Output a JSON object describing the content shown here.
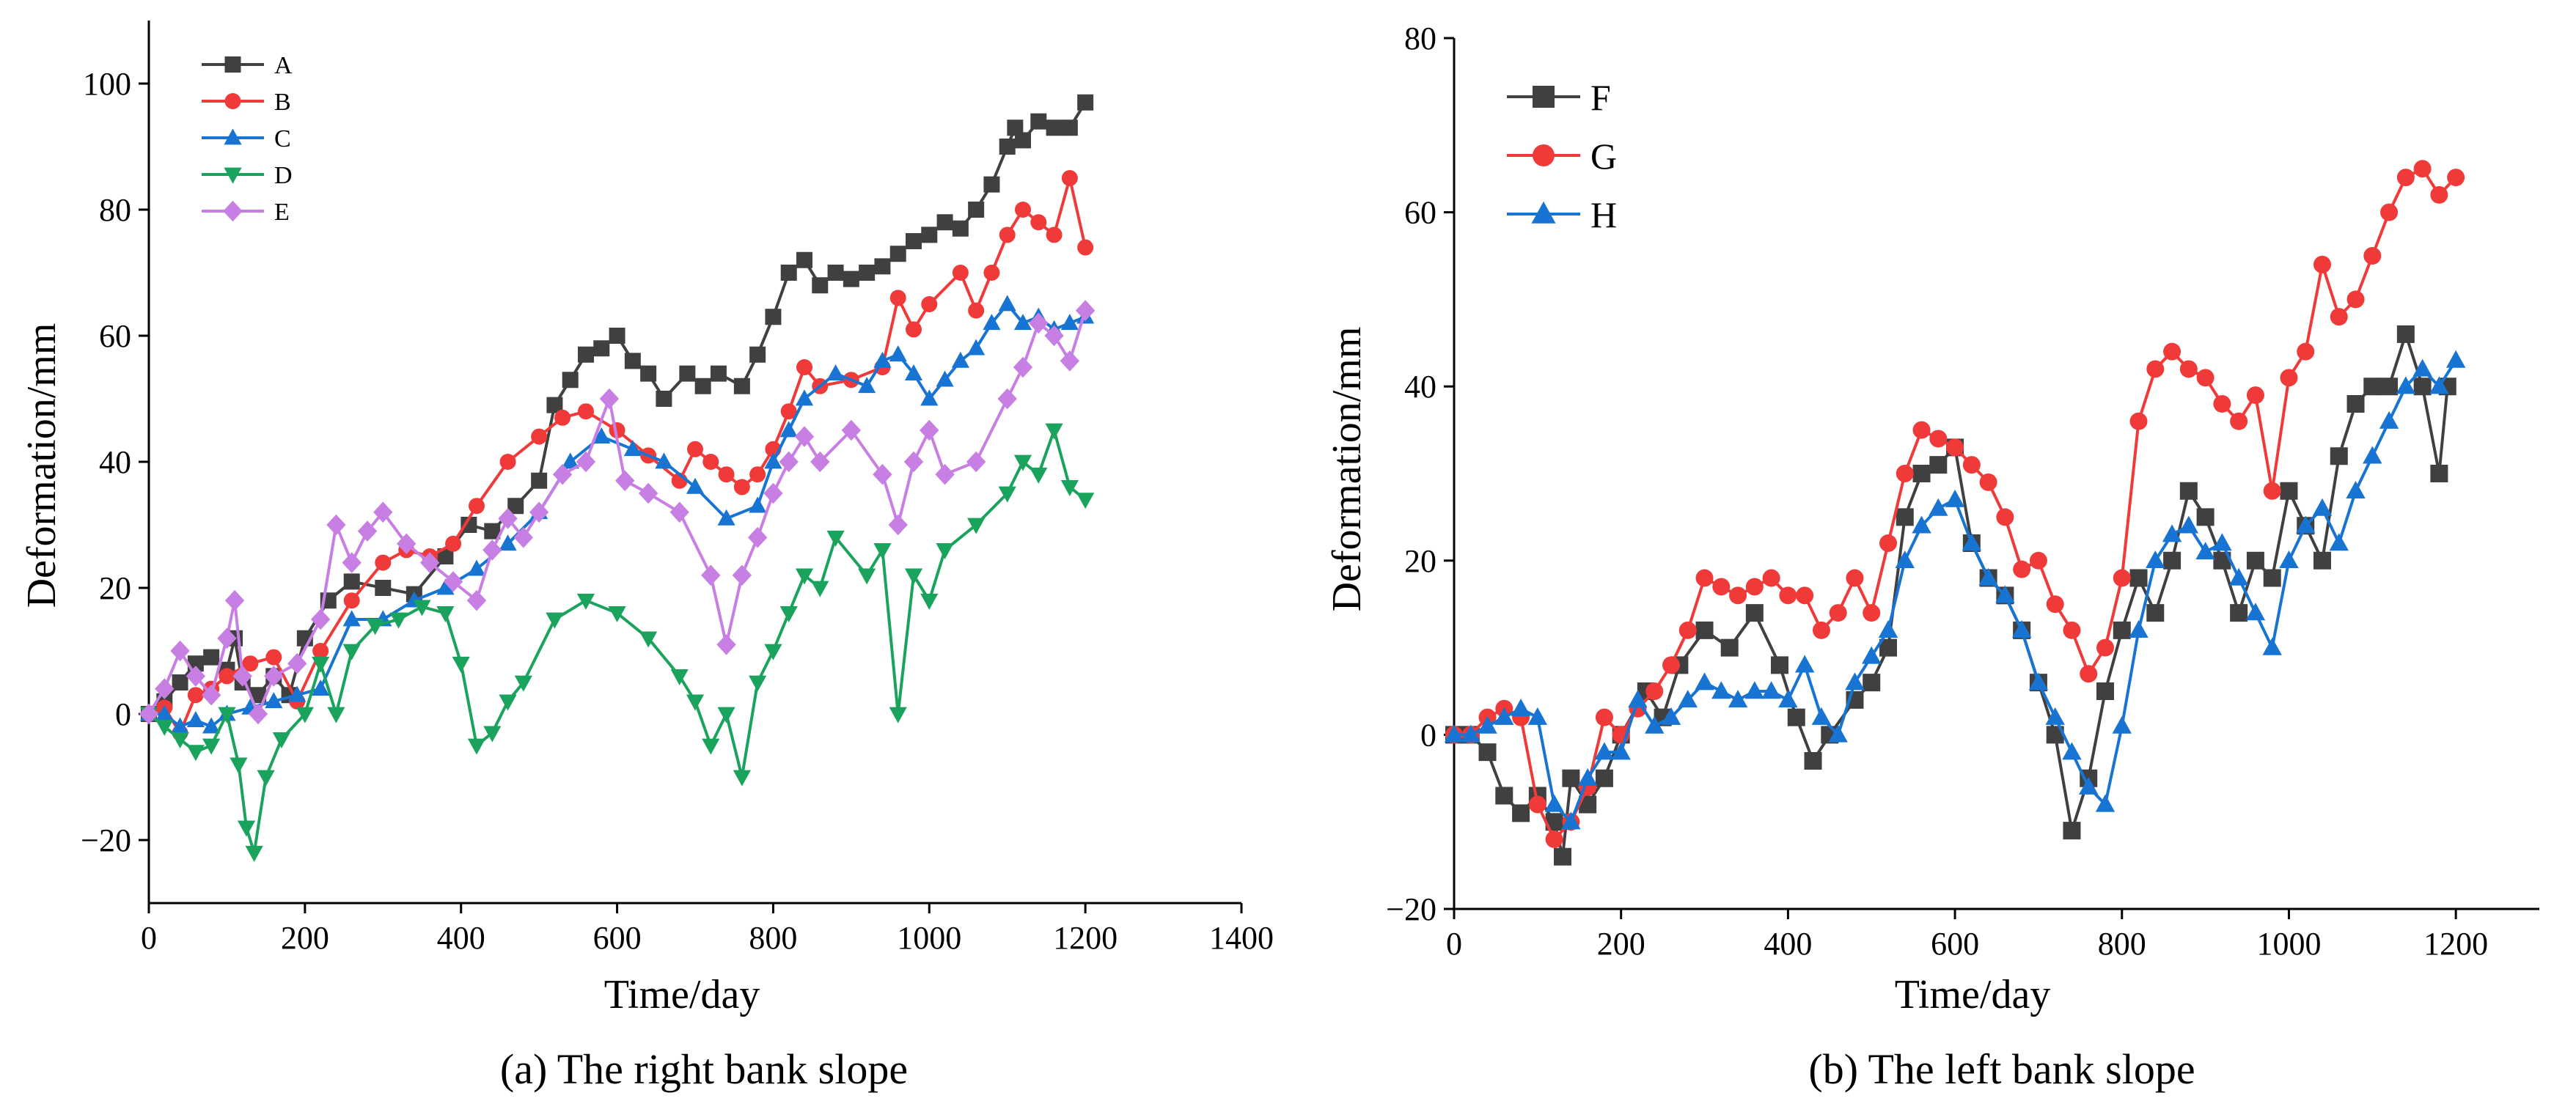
{
  "chart_data": [
    {
      "type": "line",
      "panel": "a",
      "caption": "(a) The right bank slope",
      "xlabel": "Time/day",
      "ylabel": "Deformation/mm",
      "xlim": [
        0,
        1400
      ],
      "ylim": [
        -30,
        110
      ],
      "xticks": [
        0,
        200,
        400,
        600,
        800,
        1000,
        1200,
        1400
      ],
      "yticks": [
        -20,
        0,
        20,
        40,
        60,
        80,
        100
      ],
      "legend_position": "top-left",
      "series": [
        {
          "name": "A",
          "color": "#404040",
          "marker": "square",
          "x": [
            0,
            20,
            40,
            60,
            80,
            100,
            110,
            120,
            140,
            160,
            180,
            200,
            230,
            260,
            300,
            340,
            380,
            410,
            440,
            470,
            500,
            520,
            540,
            560,
            580,
            600,
            620,
            640,
            660,
            690,
            710,
            730,
            760,
            780,
            800,
            820,
            840,
            860,
            880,
            900,
            920,
            940,
            960,
            980,
            1000,
            1020,
            1040,
            1060,
            1080,
            1100,
            1110,
            1120,
            1140,
            1160,
            1180,
            1200
          ],
          "y": [
            0,
            2,
            5,
            8,
            9,
            7,
            12,
            5,
            3,
            6,
            3,
            12,
            18,
            21,
            20,
            19,
            25,
            30,
            29,
            33,
            37,
            49,
            53,
            57,
            58,
            60,
            56,
            54,
            50,
            54,
            52,
            54,
            52,
            57,
            63,
            70,
            72,
            68,
            70,
            69,
            70,
            71,
            73,
            75,
            76,
            78,
            77,
            80,
            84,
            90,
            93,
            91,
            94,
            93,
            93,
            97
          ]
        },
        {
          "name": "B",
          "color": "#f03a3a",
          "marker": "circle",
          "x": [
            0,
            20,
            40,
            60,
            80,
            100,
            130,
            160,
            190,
            220,
            260,
            300,
            330,
            360,
            390,
            420,
            460,
            500,
            530,
            560,
            600,
            640,
            680,
            700,
            720,
            740,
            760,
            780,
            800,
            820,
            840,
            860,
            900,
            940,
            960,
            980,
            1000,
            1040,
            1060,
            1080,
            1100,
            1120,
            1140,
            1160,
            1180,
            1200
          ],
          "y": [
            0,
            1,
            -3,
            3,
            4,
            6,
            8,
            9,
            2,
            10,
            18,
            24,
            26,
            25,
            27,
            33,
            40,
            44,
            47,
            48,
            45,
            41,
            37,
            42,
            40,
            38,
            36,
            38,
            42,
            48,
            55,
            52,
            53,
            55,
            66,
            61,
            65,
            70,
            64,
            70,
            76,
            80,
            78,
            76,
            85,
            74
          ]
        },
        {
          "name": "C",
          "color": "#1874d2",
          "marker": "triangle-up",
          "x": [
            0,
            20,
            40,
            60,
            80,
            100,
            130,
            160,
            190,
            220,
            260,
            300,
            340,
            380,
            420,
            460,
            500,
            540,
            580,
            620,
            660,
            700,
            740,
            780,
            800,
            820,
            840,
            880,
            920,
            940,
            960,
            980,
            1000,
            1020,
            1040,
            1060,
            1080,
            1100,
            1120,
            1140,
            1160,
            1180,
            1200
          ],
          "y": [
            0,
            0,
            -2,
            -1,
            -2,
            0,
            1,
            2,
            3,
            4,
            15,
            15,
            18,
            20,
            23,
            27,
            32,
            40,
            44,
            42,
            40,
            36,
            31,
            33,
            40,
            45,
            50,
            54,
            52,
            56,
            57,
            54,
            50,
            53,
            56,
            58,
            62,
            65,
            62,
            63,
            61,
            62,
            63
          ]
        },
        {
          "name": "D",
          "color": "#1aa35c",
          "marker": "triangle-down",
          "x": [
            0,
            20,
            40,
            60,
            80,
            100,
            115,
            125,
            135,
            150,
            170,
            200,
            220,
            240,
            260,
            290,
            320,
            350,
            380,
            400,
            420,
            440,
            460,
            480,
            520,
            560,
            600,
            640,
            680,
            700,
            720,
            740,
            760,
            780,
            800,
            820,
            840,
            860,
            880,
            920,
            940,
            960,
            980,
            1000,
            1020,
            1060,
            1100,
            1120,
            1140,
            1160,
            1180,
            1200
          ],
          "y": [
            0,
            -2,
            -4,
            -6,
            -5,
            0,
            -8,
            -18,
            -22,
            -10,
            -4,
            0,
            8,
            0,
            10,
            14,
            15,
            17,
            16,
            8,
            -5,
            -3,
            2,
            5,
            15,
            18,
            16,
            12,
            6,
            2,
            -5,
            0,
            -10,
            5,
            10,
            16,
            22,
            20,
            28,
            22,
            26,
            0,
            22,
            18,
            26,
            30,
            35,
            40,
            38,
            45,
            36,
            34
          ]
        },
        {
          "name": "E",
          "color": "#c77fe3",
          "marker": "diamond",
          "x": [
            0,
            20,
            40,
            60,
            80,
            100,
            110,
            120,
            140,
            160,
            190,
            220,
            240,
            260,
            280,
            300,
            330,
            360,
            390,
            420,
            440,
            460,
            480,
            500,
            530,
            560,
            590,
            610,
            640,
            680,
            720,
            740,
            760,
            780,
            800,
            820,
            840,
            860,
            900,
            940,
            960,
            980,
            1000,
            1020,
            1060,
            1100,
            1120,
            1140,
            1160,
            1180,
            1200
          ],
          "y": [
            0,
            4,
            10,
            6,
            3,
            12,
            18,
            6,
            0,
            6,
            8,
            15,
            30,
            24,
            29,
            32,
            27,
            24,
            21,
            18,
            26,
            31,
            28,
            32,
            38,
            40,
            50,
            37,
            35,
            32,
            22,
            11,
            22,
            28,
            35,
            40,
            44,
            40,
            45,
            38,
            30,
            40,
            45,
            38,
            40,
            50,
            55,
            62,
            60,
            56,
            64
          ]
        }
      ]
    },
    {
      "type": "line",
      "panel": "b",
      "caption": "(b) The left bank slope",
      "xlabel": "Time/day",
      "ylabel": "Deformation/mm",
      "xlim": [
        0,
        1300
      ],
      "ylim": [
        -20,
        80
      ],
      "xticks": [
        0,
        200,
        400,
        600,
        800,
        1000,
        1200
      ],
      "yticks": [
        -20,
        0,
        20,
        40,
        60,
        80
      ],
      "legend_position": "top-left",
      "series": [
        {
          "name": "F",
          "color": "#404040",
          "marker": "square",
          "x": [
            0,
            20,
            40,
            60,
            80,
            100,
            120,
            130,
            140,
            160,
            180,
            200,
            230,
            250,
            270,
            300,
            330,
            360,
            390,
            410,
            430,
            450,
            480,
            500,
            520,
            540,
            560,
            580,
            600,
            620,
            640,
            660,
            680,
            700,
            720,
            740,
            760,
            780,
            800,
            820,
            840,
            860,
            880,
            900,
            920,
            940,
            960,
            980,
            1000,
            1020,
            1040,
            1060,
            1080,
            1100,
            1120,
            1140,
            1160,
            1180,
            1190
          ],
          "y": [
            0,
            0,
            -2,
            -7,
            -9,
            -7,
            -10,
            -14,
            -5,
            -8,
            -5,
            0,
            5,
            2,
            8,
            12,
            10,
            14,
            8,
            2,
            -3,
            0,
            4,
            6,
            10,
            25,
            30,
            31,
            33,
            22,
            18,
            16,
            12,
            6,
            0,
            -11,
            -5,
            5,
            12,
            18,
            14,
            20,
            28,
            25,
            20,
            14,
            20,
            18,
            28,
            24,
            20,
            32,
            38,
            40,
            40,
            46,
            40,
            30,
            40
          ]
        },
        {
          "name": "G",
          "color": "#f03a3a",
          "marker": "circle",
          "x": [
            0,
            20,
            40,
            60,
            80,
            100,
            120,
            140,
            160,
            180,
            200,
            220,
            240,
            260,
            280,
            300,
            320,
            340,
            360,
            380,
            400,
            420,
            440,
            460,
            480,
            500,
            520,
            540,
            560,
            580,
            600,
            620,
            640,
            660,
            680,
            700,
            720,
            740,
            760,
            780,
            800,
            820,
            840,
            860,
            880,
            900,
            920,
            940,
            960,
            980,
            1000,
            1020,
            1040,
            1060,
            1080,
            1100,
            1120,
            1140,
            1160,
            1180,
            1200
          ],
          "y": [
            0,
            0,
            2,
            3,
            2,
            -8,
            -12,
            -10,
            -6,
            2,
            0,
            3,
            5,
            8,
            12,
            18,
            17,
            16,
            17,
            18,
            16,
            16,
            12,
            14,
            18,
            14,
            22,
            30,
            35,
            34,
            33,
            31,
            29,
            25,
            19,
            20,
            15,
            12,
            7,
            10,
            18,
            36,
            42,
            44,
            42,
            41,
            38,
            36,
            39,
            28,
            41,
            44,
            54,
            48,
            50,
            55,
            60,
            64,
            65,
            62,
            64
          ]
        },
        {
          "name": "H",
          "color": "#1874d2",
          "marker": "triangle-up",
          "x": [
            0,
            20,
            40,
            60,
            80,
            100,
            120,
            140,
            160,
            180,
            200,
            220,
            240,
            260,
            280,
            300,
            320,
            340,
            360,
            380,
            400,
            420,
            440,
            460,
            480,
            500,
            520,
            540,
            560,
            580,
            600,
            620,
            640,
            660,
            680,
            700,
            720,
            740,
            760,
            780,
            800,
            820,
            840,
            860,
            880,
            900,
            920,
            940,
            960,
            980,
            1000,
            1020,
            1040,
            1060,
            1080,
            1100,
            1120,
            1140,
            1160,
            1180,
            1200
          ],
          "y": [
            0,
            0,
            1,
            2,
            3,
            2,
            -8,
            -10,
            -5,
            -2,
            -2,
            4,
            1,
            2,
            4,
            6,
            5,
            4,
            5,
            5,
            4,
            8,
            2,
            0,
            6,
            9,
            12,
            20,
            24,
            26,
            27,
            22,
            18,
            16,
            12,
            6,
            2,
            -2,
            -6,
            -8,
            1,
            12,
            20,
            23,
            24,
            21,
            22,
            18,
            14,
            10,
            20,
            24,
            26,
            22,
            28,
            32,
            36,
            40,
            42,
            40,
            43
          ]
        }
      ]
    }
  ]
}
